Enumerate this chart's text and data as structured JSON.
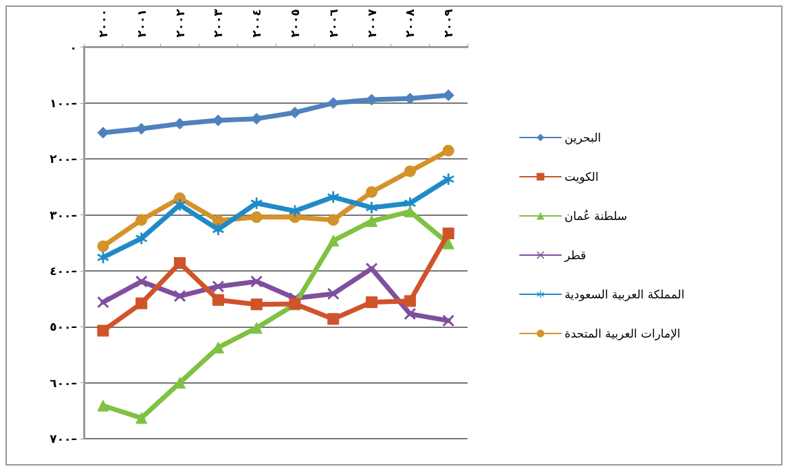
{
  "chart_data": {
    "type": "line",
    "categories": [
      "٢٠٠٠",
      "٢٠٠١",
      "٢٠٠٢",
      "٢٠٠٣",
      "٢٠٠٤",
      "٢٠٠٥",
      "٢٠٠٦",
      "٢٠٠٧",
      "٢٠٠٨",
      "٢٠٠٩"
    ],
    "ylim": [
      700,
      0
    ],
    "yticks": [
      {
        "value": 0,
        "label": "٠"
      },
      {
        "value": 100,
        "label": "١٠٠–"
      },
      {
        "value": 200,
        "label": "٢٠٠–"
      },
      {
        "value": 300,
        "label": "٣٠٠–"
      },
      {
        "value": 400,
        "label": "٤٠٠–"
      },
      {
        "value": 500,
        "label": "٥٠٠–"
      },
      {
        "value": 600,
        "label": "٦٠٠–"
      },
      {
        "value": 700,
        "label": "٧٠٠–"
      }
    ],
    "grid": "y",
    "legend": "right",
    "line_style": "solid",
    "series": [
      {
        "name": "البحرين",
        "color": "#4f81bd",
        "marker": "diamond",
        "values": [
          153,
          146,
          137,
          131,
          128,
          117,
          100,
          94,
          92,
          86
        ]
      },
      {
        "name": "الكويت",
        "color": "#d0532a",
        "marker": "square",
        "values": [
          507,
          458,
          386,
          452,
          460,
          459,
          486,
          456,
          454,
          333
        ]
      },
      {
        "name": "سلطنة عُمان",
        "color": "#7fc241",
        "marker": "triangle",
        "values": [
          641,
          663,
          600,
          537,
          502,
          460,
          346,
          311,
          294,
          351
        ]
      },
      {
        "name": "قطر",
        "color": "#7f4f9e",
        "marker": "cross",
        "values": [
          456,
          419,
          445,
          428,
          419,
          449,
          441,
          396,
          477,
          489
        ]
      },
      {
        "name": "المملكة العربية السعودية",
        "color": "#1f8ac8",
        "marker": "star",
        "values": [
          376,
          342,
          282,
          326,
          279,
          293,
          268,
          287,
          279,
          236
        ]
      },
      {
        "name": "الإمارات العربية المتحدة",
        "color": "#d4922a",
        "marker": "circle",
        "values": [
          356,
          309,
          270,
          310,
          304,
          304,
          309,
          259,
          222,
          185
        ]
      }
    ]
  }
}
